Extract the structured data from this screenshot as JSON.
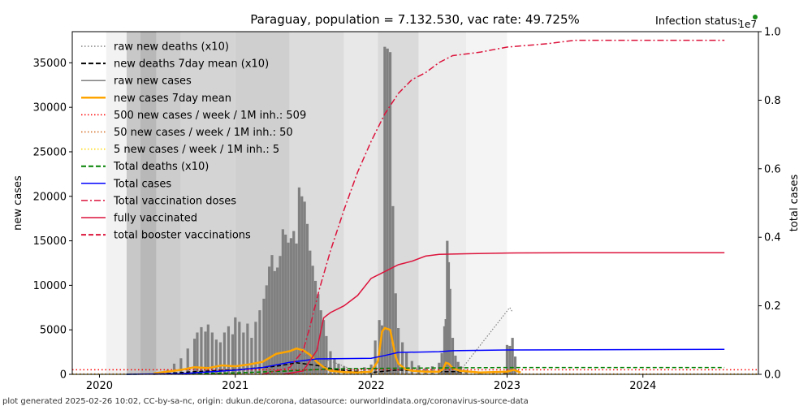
{
  "chart_data": {
    "type": "bar",
    "title": "Paraguay, population = 7.132.530, vac rate: 49.725%",
    "status_label": "Infection status:",
    "status_color": "#1a8c1a",
    "footer": "plot generated 2025-02-26 10:02, CC-by-sa-nc, origin: dukun.de/corona, datasource: ourworldindata.org/coronavirus-source-data",
    "ylabel_left": "new cases",
    "ylabel_right": "total cases",
    "right_axis_multiplier": "1e7",
    "xlim": [
      2019.8,
      2024.85
    ],
    "ylim_left": [
      0,
      38500
    ],
    "ylim_right": [
      0,
      1.0
    ],
    "x_ticks": [
      2020,
      2021,
      2022,
      2023,
      2024
    ],
    "x_tick_labels": [
      "2020",
      "2021",
      "2022",
      "2023",
      "2024"
    ],
    "y_ticks_left": [
      0,
      5000,
      10000,
      15000,
      20000,
      25000,
      30000,
      35000
    ],
    "y_tick_labels_left": [
      "0",
      "5000",
      "10000",
      "15000",
      "20000",
      "25000",
      "30000",
      "35000"
    ],
    "y_ticks_right": [
      0.0,
      0.2,
      0.4,
      0.6,
      0.8,
      1.0
    ],
    "y_tick_labels_right": [
      "0.0",
      "0.2",
      "0.4",
      "0.6",
      "0.8",
      "1.0"
    ],
    "legend_position": "top-left",
    "legend": [
      {
        "label": "raw new deaths (x10)",
        "color": "#808080",
        "style": "dotted"
      },
      {
        "label": "new deaths 7day mean (x10)",
        "color": "#000000",
        "style": "dashed"
      },
      {
        "label": "raw new cases",
        "color": "#808080",
        "style": "solid"
      },
      {
        "label": "new cases 7day mean",
        "color": "#ffa500",
        "style": "solid-thick"
      },
      {
        "label": "500 new cases / week / 1M inh.: 509",
        "color": "#ff0000",
        "style": "dotted"
      },
      {
        "label": "50 new cases / week / 1M inh.: 50",
        "color": "#d2691e",
        "style": "dotted"
      },
      {
        "label": "5 new cases / week / 1M inh.: 5",
        "color": "#ffd700",
        "style": "dotted"
      },
      {
        "label": "Total deaths (x10)",
        "color": "#008000",
        "style": "dashed"
      },
      {
        "label": "Total cases",
        "color": "#0000ff",
        "style": "solid"
      },
      {
        "label": "Total vaccination doses",
        "color": "#dc143c",
        "style": "dashdot"
      },
      {
        "label": "fully vaccinated",
        "color": "#dc143c",
        "style": "solid"
      },
      {
        "label": "total booster vaccinations",
        "color": "#dc143c",
        "style": "dashed"
      }
    ],
    "threshold_lines": [
      {
        "name": "500 new cases / week / 1M inh.: 509",
        "value": 509,
        "color": "#ff0000"
      },
      {
        "name": "50 new cases / week / 1M inh.: 50",
        "value": 50,
        "color": "#d2691e"
      },
      {
        "name": "5 new cases / week / 1M inh.: 5",
        "value": 5,
        "color": "#ffd700"
      }
    ],
    "raw_new_cases": {
      "x": [
        2020.45,
        2020.5,
        2020.55,
        2020.6,
        2020.65,
        2020.7,
        2020.72,
        2020.75,
        2020.78,
        2020.8,
        2020.83,
        2020.86,
        2020.89,
        2020.92,
        2020.95,
        2020.98,
        2021.0,
        2021.03,
        2021.06,
        2021.09,
        2021.12,
        2021.15,
        2021.18,
        2021.21,
        2021.23,
        2021.25,
        2021.27,
        2021.29,
        2021.31,
        2021.33,
        2021.35,
        2021.37,
        2021.39,
        2021.41,
        2021.43,
        2021.45,
        2021.47,
        2021.49,
        2021.51,
        2021.53,
        2021.55,
        2021.57,
        2021.59,
        2021.61,
        2021.63,
        2021.65,
        2021.67,
        2021.7,
        2021.73,
        2021.76,
        2021.8,
        2021.85,
        2021.9,
        2021.95,
        2022.0,
        2022.03,
        2022.06,
        2022.08,
        2022.1,
        2022.12,
        2022.14,
        2022.16,
        2022.18,
        2022.2,
        2022.23,
        2022.26,
        2022.3,
        2022.35,
        2022.4,
        2022.45,
        2022.5,
        2022.52,
        2022.54,
        2022.55,
        2022.56,
        2022.57,
        2022.58,
        2022.6,
        2022.62,
        2022.64,
        2022.66,
        2022.7,
        2022.8,
        2022.9,
        2022.98,
        2023.0,
        2023.02,
        2023.04,
        2023.06
      ],
      "values": [
        200,
        500,
        1200,
        1800,
        2900,
        4000,
        4700,
        5300,
        4800,
        5600,
        4700,
        3900,
        3600,
        4700,
        5400,
        4500,
        6400,
        5900,
        4700,
        5700,
        4100,
        5900,
        7200,
        8500,
        10000,
        12100,
        13400,
        11600,
        12000,
        13300,
        16300,
        15700,
        14800,
        15300,
        16100,
        14700,
        21000,
        20000,
        19400,
        16900,
        13900,
        12200,
        10500,
        9000,
        7200,
        6100,
        4300,
        2600,
        1700,
        1200,
        900,
        700,
        600,
        800,
        1100,
        3800,
        6100,
        5500,
        36800,
        36600,
        36200,
        18900,
        9100,
        5200,
        3600,
        2400,
        1500,
        1000,
        700,
        900,
        1300,
        2400,
        5400,
        6200,
        15000,
        12600,
        9600,
        4100,
        2100,
        1400,
        900,
        500,
        300,
        300,
        300,
        3300,
        3200,
        4100,
        2000
      ]
    },
    "raw_new_deaths_x10": {
      "x": [
        2021.4,
        2021.45,
        2021.5,
        2021.55,
        2021.6,
        2021.65,
        2021.7,
        2021.75,
        2021.8,
        2021.85,
        2022.2,
        2022.25,
        2022.3,
        2022.35,
        2022.5,
        2022.55,
        2022.6,
        2022.65,
        2023.02,
        2023.04
      ],
      "values": [
        1500,
        1800,
        2100,
        2200,
        2000,
        1800,
        1500,
        1200,
        900,
        600,
        700,
        800,
        700,
        500,
        300,
        400,
        500,
        300,
        7500,
        7000
      ]
    },
    "new_cases_7day_mean": {
      "x": [
        2020.4,
        2020.6,
        2020.7,
        2020.8,
        2020.9,
        2021.0,
        2021.1,
        2021.2,
        2021.3,
        2021.4,
        2021.45,
        2021.5,
        2021.55,
        2021.6,
        2021.65,
        2021.7,
        2021.8,
        2021.9,
        2022.0,
        2022.05,
        2022.08,
        2022.1,
        2022.14,
        2022.18,
        2022.2,
        2022.25,
        2022.3,
        2022.4,
        2022.5,
        2022.53,
        2022.55,
        2022.57,
        2022.6,
        2022.65,
        2022.8,
        2023.0,
        2023.05,
        2023.1
      ],
      "values": [
        100,
        500,
        800,
        700,
        1000,
        900,
        1100,
        1400,
        2300,
        2600,
        2900,
        2700,
        2200,
        1400,
        800,
        400,
        250,
        200,
        300,
        1500,
        4800,
        5200,
        5000,
        2000,
        1200,
        600,
        400,
        300,
        300,
        600,
        1300,
        1200,
        700,
        400,
        200,
        300,
        500,
        200
      ]
    },
    "new_deaths_7day_mean_x10": {
      "x": [
        2020.4,
        2020.7,
        2021.0,
        2021.3,
        2021.45,
        2021.6,
        2021.75,
        2022.0,
        2022.2,
        2022.4,
        2022.6,
        2023.0,
        2023.05,
        2023.1
      ],
      "values": [
        0,
        300,
        500,
        900,
        1300,
        1000,
        500,
        200,
        500,
        300,
        300,
        200,
        600,
        200
      ]
    },
    "total_cases": {
      "x": [
        2020.2,
        2020.6,
        2021.0,
        2021.2,
        2021.4,
        2021.6,
        2021.8,
        2022.0,
        2022.1,
        2022.2,
        2022.5,
        2022.6,
        2023.0,
        2024.6
      ],
      "values": [
        0.0,
        0.002,
        0.012,
        0.02,
        0.035,
        0.045,
        0.046,
        0.047,
        0.055,
        0.064,
        0.066,
        0.069,
        0.071,
        0.073
      ]
    },
    "total_deaths_x10": {
      "x": [
        2020.2,
        2021.0,
        2021.4,
        2021.7,
        2022.2,
        2022.6,
        2023.0,
        2024.6
      ],
      "values": [
        0.0,
        0.004,
        0.01,
        0.016,
        0.018,
        0.019,
        0.02,
        0.02
      ]
    },
    "total_vaccination_doses": {
      "x": [
        2021.2,
        2021.4,
        2021.5,
        2021.55,
        2021.62,
        2021.7,
        2021.8,
        2021.9,
        2022.0,
        2022.1,
        2022.2,
        2022.3,
        2022.4,
        2022.5,
        2022.6,
        2022.8,
        2023.0,
        2023.3,
        2023.5,
        2024.6
      ],
      "values": [
        0.0,
        0.02,
        0.07,
        0.14,
        0.25,
        0.36,
        0.48,
        0.59,
        0.68,
        0.76,
        0.82,
        0.86,
        0.88,
        0.91,
        0.93,
        0.94,
        0.955,
        0.965,
        0.975,
        0.975
      ]
    },
    "fully_vaccinated": {
      "x": [
        2021.35,
        2021.5,
        2021.6,
        2021.65,
        2021.7,
        2021.8,
        2021.9,
        2022.0,
        2022.1,
        2022.2,
        2022.3,
        2022.4,
        2022.5,
        2022.7,
        2023.0,
        2023.5,
        2024.6
      ],
      "values": [
        0.0,
        0.01,
        0.07,
        0.165,
        0.18,
        0.2,
        0.23,
        0.28,
        0.3,
        0.32,
        0.33,
        0.345,
        0.35,
        0.352,
        0.354,
        0.355,
        0.355
      ]
    }
  }
}
